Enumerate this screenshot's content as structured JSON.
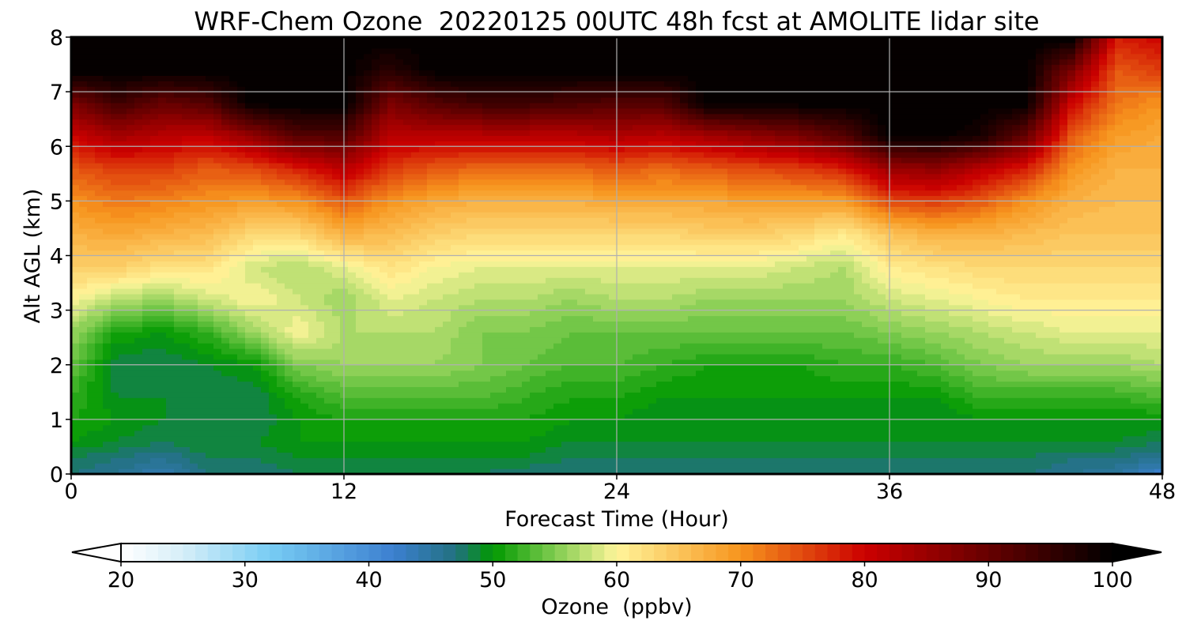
{
  "chart_data": {
    "type": "heatmap",
    "title": "WRF-Chem Ozone  20220125 00UTC 48h fcst at AMOLITE lidar site",
    "xlabel": "Forecast Time (Hour)",
    "ylabel": "Alt AGL (km)",
    "xlim": [
      0,
      48
    ],
    "ylim": [
      0,
      8
    ],
    "xticks": [
      0,
      12,
      24,
      36,
      48
    ],
    "yticks": [
      0,
      1,
      2,
      3,
      4,
      5,
      6,
      7,
      8
    ],
    "grid": true,
    "colorbar": {
      "label": "Ozone  (ppbv)",
      "range": [
        20,
        100
      ],
      "step": 1,
      "ticks": [
        20,
        30,
        40,
        50,
        60,
        70,
        80,
        90,
        100
      ],
      "extend": "both",
      "orientation": "horizontal",
      "placement": "bottom",
      "colors": [
        "#ffffff",
        "#d6eef8",
        "#78cdf4",
        "#3c7fd0",
        "#227080",
        "#009900",
        "#80cc50",
        "#fff59a",
        "#f7941d",
        "#cc0000",
        "#000000"
      ],
      "color_stops": [
        20,
        25,
        32,
        42,
        47,
        50,
        55,
        60,
        70,
        80,
        100
      ]
    },
    "profile_heights_km": [
      0,
      0.3,
      0.6,
      1,
      1.4,
      2,
      2.6,
      3.2,
      3.8,
      4.4,
      5,
      5.6,
      6.2,
      6.8,
      7.4,
      8
    ],
    "profile_times_h": [
      0,
      2,
      4,
      6,
      8,
      10,
      12,
      14,
      16,
      18,
      20,
      22,
      24,
      26,
      28,
      30,
      32,
      34,
      36,
      38,
      40,
      42,
      44,
      46,
      48
    ],
    "values": [
      [
        47,
        48,
        50,
        51,
        52,
        54,
        56,
        60,
        64,
        67,
        70,
        74,
        80,
        88,
        100,
        100
      ],
      [
        46,
        47,
        49,
        50,
        49,
        48,
        51,
        57,
        64,
        68,
        72,
        76,
        84,
        94,
        100,
        100
      ],
      [
        44,
        46,
        48,
        49,
        49,
        48,
        50,
        56,
        62,
        67,
        71,
        76,
        82,
        90,
        100,
        100
      ],
      [
        47,
        48,
        49,
        49,
        48,
        49,
        52,
        58,
        62,
        66,
        70,
        74,
        81,
        92,
        100,
        100
      ],
      [
        47,
        48,
        49,
        48,
        48,
        50,
        56,
        60,
        58,
        63,
        69,
        75,
        86,
        100,
        100,
        100
      ],
      [
        48,
        49,
        50,
        50,
        51,
        55,
        60,
        58,
        57,
        63,
        70,
        78,
        92,
        100,
        100,
        100
      ],
      [
        48,
        49,
        50,
        51,
        53,
        56,
        57,
        56,
        59,
        67,
        74,
        82,
        92,
        100,
        100,
        100
      ],
      [
        48,
        49,
        50,
        51,
        53,
        56,
        57,
        59,
        62,
        66,
        70,
        76,
        82,
        88,
        96,
        100
      ],
      [
        48,
        49,
        50,
        51,
        53,
        56,
        57,
        58,
        60,
        64,
        68,
        74,
        82,
        92,
        100,
        100
      ],
      [
        48,
        49,
        50,
        51,
        53,
        55,
        55,
        57,
        59,
        63,
        67,
        73,
        82,
        94,
        100,
        100
      ],
      [
        47,
        49,
        50,
        51,
        52,
        54,
        55,
        57,
        59,
        63,
        67,
        73,
        82,
        94,
        100,
        100
      ],
      [
        47,
        48,
        49,
        50,
        51,
        53,
        54,
        56,
        59,
        63,
        67,
        73,
        82,
        93,
        100,
        100
      ],
      [
        47,
        48,
        49,
        50,
        51,
        53,
        54,
        57,
        59,
        63,
        68,
        74,
        83,
        92,
        100,
        100
      ],
      [
        47,
        48,
        49,
        49,
        50,
        52,
        54,
        57,
        59,
        63,
        68,
        73,
        82,
        92,
        100,
        100
      ],
      [
        47,
        48,
        49,
        49,
        50,
        51,
        54,
        56,
        59,
        64,
        68,
        74,
        84,
        100,
        100,
        100
      ],
      [
        47,
        48,
        49,
        49,
        50,
        51,
        54,
        56,
        59,
        64,
        69,
        75,
        86,
        100,
        100,
        100
      ],
      [
        47,
        48,
        49,
        49,
        50,
        51,
        54,
        56,
        58,
        63,
        69,
        76,
        88,
        100,
        100,
        100
      ],
      [
        47,
        48,
        49,
        49,
        50,
        52,
        54,
        56,
        57,
        61,
        69,
        78,
        92,
        100,
        100,
        100
      ],
      [
        47,
        48,
        49,
        49,
        50,
        52,
        55,
        58,
        61,
        65,
        75,
        85,
        100,
        100,
        100,
        100
      ],
      [
        47,
        48,
        49,
        49,
        50,
        53,
        56,
        59,
        62,
        67,
        76,
        86,
        100,
        100,
        100,
        100
      ],
      [
        47,
        48,
        49,
        50,
        52,
        55,
        57,
        60,
        63,
        67,
        74,
        82,
        98,
        100,
        100,
        100
      ],
      [
        47,
        48,
        49,
        50,
        52,
        56,
        58,
        61,
        63,
        66,
        70,
        78,
        90,
        100,
        100,
        100
      ],
      [
        46,
        47,
        49,
        50,
        52,
        56,
        59,
        61,
        63,
        65,
        67,
        70,
        74,
        80,
        88,
        100
      ],
      [
        45,
        47,
        49,
        50,
        52,
        56,
        59,
        61,
        63,
        65,
        66,
        67,
        69,
        72,
        74,
        78
      ],
      [
        42,
        46,
        48,
        50,
        53,
        57,
        59,
        61,
        63,
        65,
        66,
        67,
        68,
        70,
        76,
        80
      ]
    ]
  }
}
